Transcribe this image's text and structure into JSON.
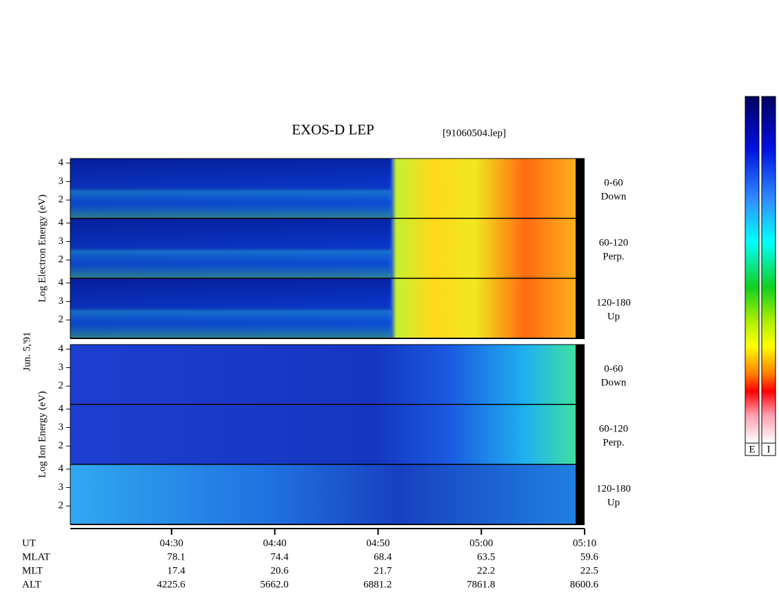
{
  "chart_data": {
    "type": "spectrogram",
    "title": "EXOS-D LEP",
    "subtitle": "[91060504.lep]",
    "date_label": "Jun. 5,'91",
    "xlim": [
      260.2,
      310
    ],
    "xticks": [
      {
        "value": 270,
        "label": "04:30"
      },
      {
        "value": 280,
        "label": "04:40"
      },
      {
        "value": 290,
        "label": "04:50"
      },
      {
        "value": 300,
        "label": "05:00"
      },
      {
        "value": 310,
        "label": "05:10"
      }
    ],
    "ylim": [
      1,
      4.25
    ],
    "yticks": [
      2,
      3,
      4
    ],
    "groups": [
      {
        "ylabel": "Log Electron Energy (eV)",
        "species": "electron",
        "panels": [
          {
            "angle": "0-60",
            "direction": "Down"
          },
          {
            "angle": "60-120",
            "direction": "Perp."
          },
          {
            "angle": "120-180",
            "direction": "Up"
          }
        ]
      },
      {
        "ylabel": "Log Ion Energy (eV)",
        "species": "ion",
        "panels": [
          {
            "angle": "0-60",
            "direction": "Down"
          },
          {
            "angle": "60-120",
            "direction": "Perp."
          },
          {
            "angle": "120-180",
            "direction": "Up"
          }
        ]
      }
    ],
    "x_label": "UT",
    "ephemeris": [
      {
        "name": "MLAT",
        "values": [
          {
            "value": 78.1,
            "label": "78.1"
          },
          {
            "value": 74.4,
            "label": "74.4"
          },
          {
            "value": 68.4,
            "label": "68.4"
          },
          {
            "value": 63.5,
            "label": "63.5"
          },
          {
            "value": 59.6,
            "label": "59.6"
          }
        ]
      },
      {
        "name": "MLT",
        "values": [
          {
            "value": 17.4,
            "label": "17.4"
          },
          {
            "value": 20.6,
            "label": "20.6"
          },
          {
            "value": 21.7,
            "label": "21.7"
          },
          {
            "value": 22.2,
            "label": "22.2"
          },
          {
            "value": 22.5,
            "label": "22.5"
          }
        ]
      },
      {
        "name": "ALT",
        "values": [
          {
            "value": 4225.6,
            "label": "4225.6"
          },
          {
            "value": 5662.0,
            "label": "5662.0"
          },
          {
            "value": 6881.2,
            "label": "6881.2"
          },
          {
            "value": 7861.8,
            "label": "7861.8"
          },
          {
            "value": 8600.6,
            "label": "8600.6"
          }
        ]
      }
    ],
    "colorbar_labels": [
      "E",
      "I"
    ]
  }
}
